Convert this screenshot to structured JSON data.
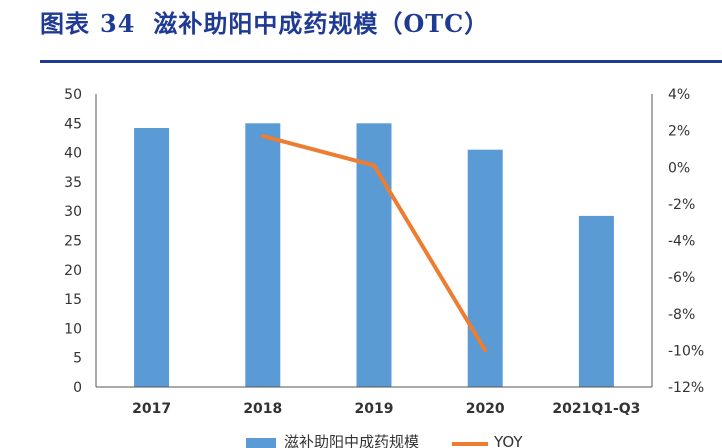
{
  "figure": {
    "label": "图表",
    "number": "34",
    "title": "滋补助阳中成药规模（OTC）"
  },
  "chart_data": {
    "type": "bar",
    "categories": [
      "2017",
      "2018",
      "2019",
      "2020",
      "2021Q1-Q3"
    ],
    "series": [
      {
        "name": "滋补助阳中成药规模",
        "type": "bar",
        "axis": "left",
        "color": "#5b9bd5",
        "values": [
          44.2,
          45.0,
          45.0,
          40.5,
          29.2
        ]
      },
      {
        "name": "YOY",
        "type": "line",
        "axis": "right",
        "color": "#ed7d31",
        "values": [
          null,
          1.7,
          0.1,
          -10.0,
          null
        ]
      }
    ],
    "y_left": {
      "ylim": [
        0,
        50
      ],
      "ticks": [
        "0",
        "5",
        "10",
        "15",
        "20",
        "25",
        "30",
        "35",
        "40",
        "45",
        "50"
      ]
    },
    "y_right": {
      "ylim": [
        -12,
        4
      ],
      "ticks": [
        "-12%",
        "-10%",
        "-8%",
        "-6%",
        "-4%",
        "-2%",
        "0%",
        "2%",
        "4%"
      ]
    },
    "legend_position": "bottom",
    "grid": false
  }
}
